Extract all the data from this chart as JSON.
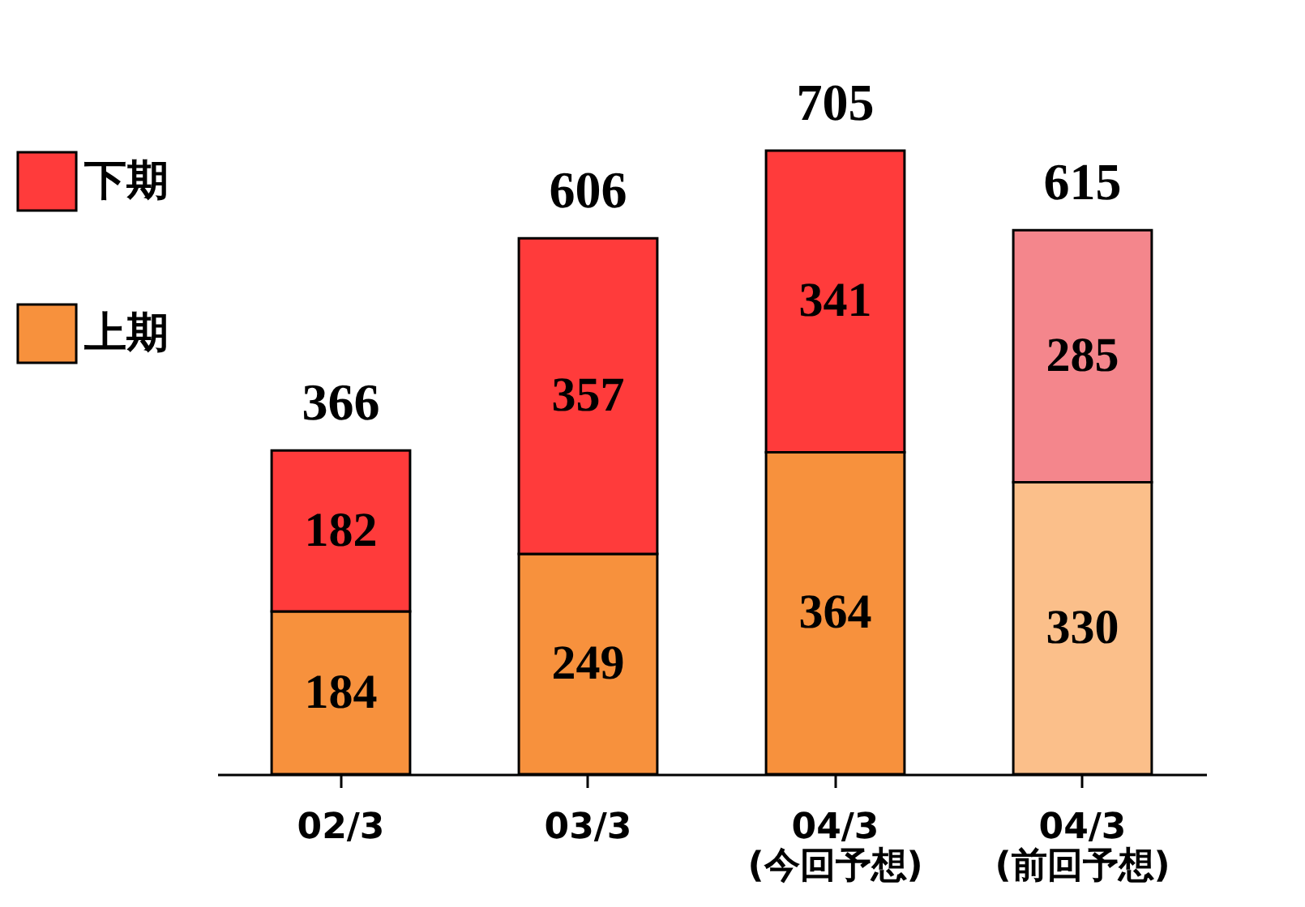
{
  "chart_data": {
    "type": "bar",
    "stacked": true,
    "data_labels": true,
    "legend": "left",
    "tick_labels": "x",
    "categories": [
      "02/3",
      "03/3",
      "04/3\n(今回予想)",
      "04/3\n(前回予想)"
    ],
    "series": [
      {
        "name": "上期",
        "color": "#f7913d",
        "colors": [
          "#f7913d",
          "#f7913d",
          "#f7913d",
          "#fbbf8a"
        ],
        "values": [
          184,
          249,
          364,
          330
        ]
      },
      {
        "name": "下期",
        "color": "#ff3b3b",
        "colors": [
          "#ff3b3b",
          "#ff3b3b",
          "#ff3b3b",
          "#f4868c"
        ],
        "values": [
          182,
          357,
          341,
          285
        ]
      }
    ],
    "totals": [
      "366",
      "606",
      "705",
      "615"
    ]
  }
}
